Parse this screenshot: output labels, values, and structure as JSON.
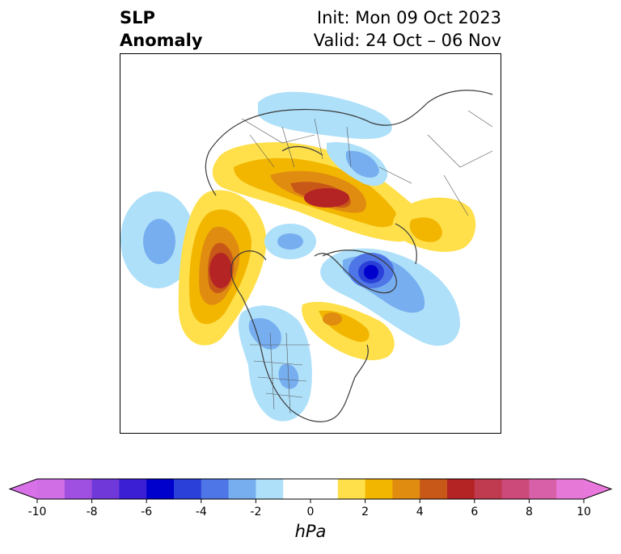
{
  "title": {
    "left_line1": "SLP",
    "left_line2": "Anomaly",
    "right_line1": "Init: Mon 09 Oct 2023",
    "right_line2": "Valid: 24 Oct – 06 Nov"
  },
  "colorbar": {
    "unit": "hPa",
    "min": -10,
    "max": 10,
    "extend": "both",
    "tick_labels": [
      "-10",
      "-8",
      "-6",
      "-4",
      "-2",
      "0",
      "2",
      "4",
      "6",
      "8",
      "10"
    ],
    "ticks": [
      -10,
      -8,
      -6,
      -4,
      -2,
      0,
      2,
      4,
      6,
      8,
      10
    ],
    "bins": [
      {
        "from": -10,
        "to": -9,
        "color": "#d06ee6"
      },
      {
        "from": -9,
        "to": -8,
        "color": "#a050e0"
      },
      {
        "from": -8,
        "to": -7,
        "color": "#7038d8"
      },
      {
        "from": -7,
        "to": -6,
        "color": "#3a1fd4"
      },
      {
        "from": -6,
        "to": -5,
        "color": "#0000cc"
      },
      {
        "from": -5,
        "to": -4,
        "color": "#2a40d8"
      },
      {
        "from": -4,
        "to": -3,
        "color": "#4e76e6"
      },
      {
        "from": -3,
        "to": -2,
        "color": "#76aef0"
      },
      {
        "from": -2,
        "to": -1,
        "color": "#aee0fa"
      },
      {
        "from": -1,
        "to": 1,
        "color": "#ffffff"
      },
      {
        "from": 1,
        "to": 2,
        "color": "#ffe04a"
      },
      {
        "from": 2,
        "to": 3,
        "color": "#f2b600"
      },
      {
        "from": 3,
        "to": 4,
        "color": "#e08c10"
      },
      {
        "from": 4,
        "to": 5,
        "color": "#c85818"
      },
      {
        "from": 5,
        "to": 6,
        "color": "#b42424"
      },
      {
        "from": 6,
        "to": 7,
        "color": "#c03a50"
      },
      {
        "from": 7,
        "to": 8,
        "color": "#cc4a7a"
      },
      {
        "from": 8,
        "to": 9,
        "color": "#d860a8"
      },
      {
        "from": 9,
        "to": 10,
        "color": "#e678d8"
      }
    ],
    "under_color": "#d870e8",
    "over_color": "#e878dc"
  },
  "anomaly_centers": [
    {
      "region": "north-pacific-high",
      "value": 6,
      "sign": "positive"
    },
    {
      "region": "eurasia-high",
      "value": 5,
      "sign": "positive"
    },
    {
      "region": "europe-high",
      "value": 2,
      "sign": "positive"
    },
    {
      "region": "atlantic-canada-high",
      "value": 2,
      "sign": "positive"
    },
    {
      "region": "greenland-low",
      "value": -6,
      "sign": "negative"
    },
    {
      "region": "west-pacific-low",
      "value": -3,
      "sign": "negative"
    },
    {
      "region": "arctic-low",
      "value": -3,
      "sign": "negative"
    },
    {
      "region": "central-us-low",
      "value": -2,
      "sign": "negative"
    },
    {
      "region": "siberia-low",
      "value": -2,
      "sign": "negative"
    }
  ]
}
